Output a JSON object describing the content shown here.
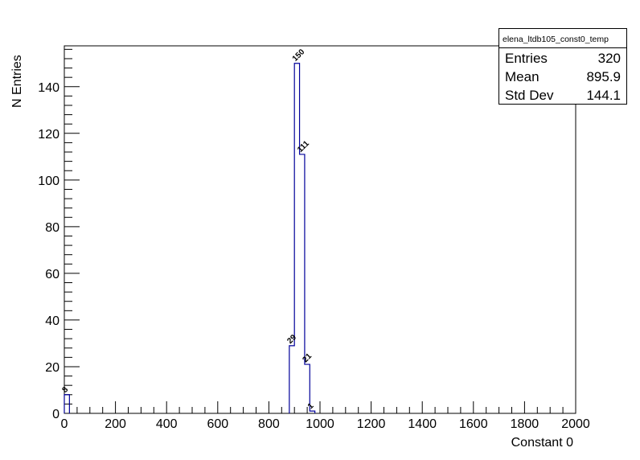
{
  "chart_data": {
    "type": "bar",
    "style": "step-histogram",
    "title": "",
    "xlabel": "Constant 0",
    "ylabel": "N Entries",
    "xlim": [
      0,
      2000
    ],
    "ylim": [
      0,
      157.5
    ],
    "bin_width": 20,
    "bins": [
      {
        "x_low": 0,
        "x_high": 20,
        "value": 8
      },
      {
        "x_low": 880,
        "x_high": 900,
        "value": 29
      },
      {
        "x_low": 900,
        "x_high": 920,
        "value": 150
      },
      {
        "x_low": 920,
        "x_high": 940,
        "value": 111
      },
      {
        "x_low": 940,
        "x_high": 960,
        "value": 21
      },
      {
        "x_low": 960,
        "x_high": 980,
        "value": 1
      }
    ],
    "x_ticks": [
      0,
      200,
      400,
      600,
      800,
      1000,
      1200,
      1400,
      1600,
      1800,
      2000
    ],
    "y_ticks": [
      0,
      20,
      40,
      60,
      80,
      100,
      120,
      140
    ],
    "grid": false,
    "line_color": "#000099",
    "data_labels": true,
    "legend": "none",
    "stats_box": {
      "name": "elena_ltdb105_const0_temp",
      "placement": "top-right",
      "rows": [
        {
          "label": "Entries",
          "value": "320"
        },
        {
          "label": "Mean",
          "value": "895.9"
        },
        {
          "label": "Std Dev",
          "value": "144.1"
        }
      ]
    }
  }
}
